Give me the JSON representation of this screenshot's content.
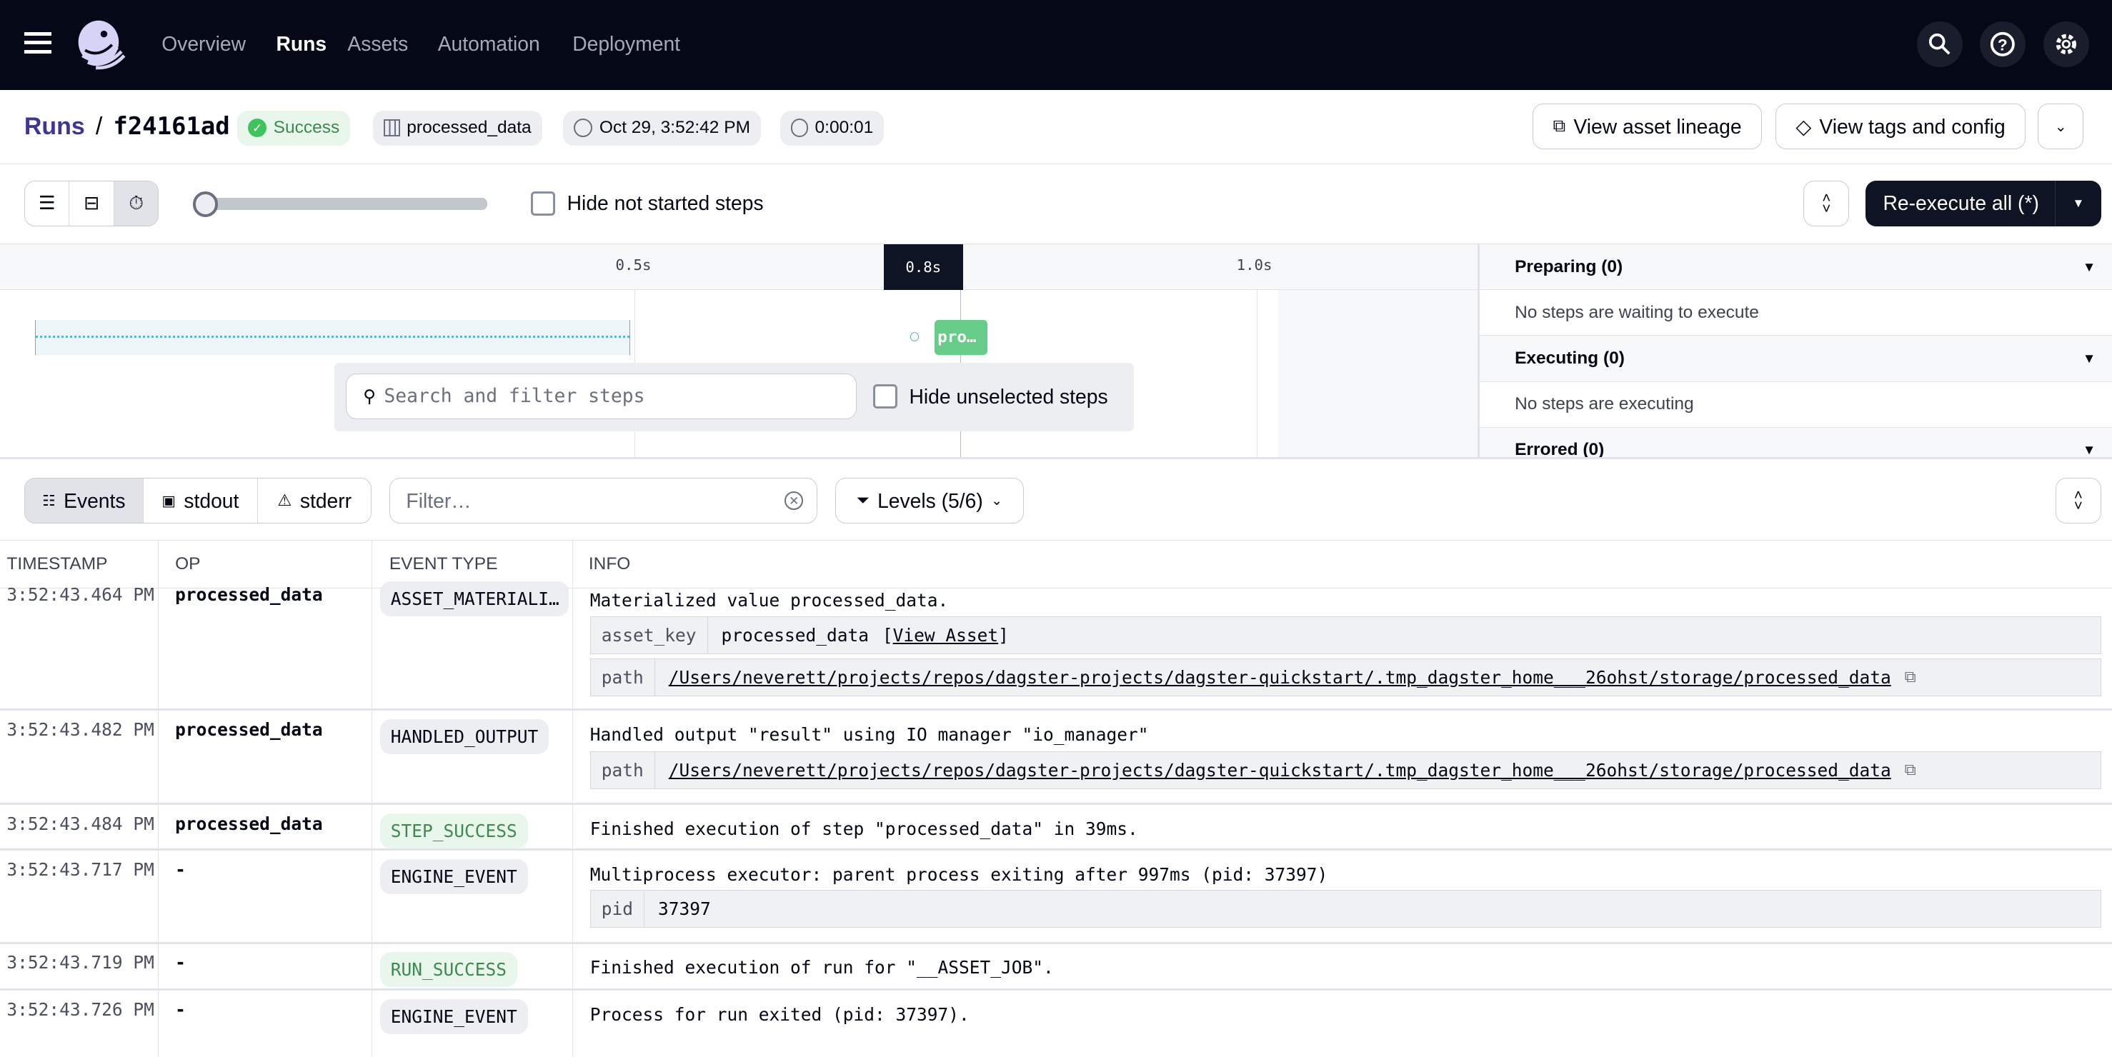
{
  "nav": {
    "items": [
      {
        "label": "Overview"
      },
      {
        "label": "Runs",
        "active": true
      },
      {
        "label": "Assets"
      },
      {
        "label": "Automation"
      },
      {
        "label": "Deployment"
      }
    ],
    "icons": [
      "menu-icon",
      "search-icon",
      "help-icon",
      "settings-icon"
    ]
  },
  "run": {
    "breadcrumb_root": "Runs",
    "sep": "/",
    "run_id": "f24161ad",
    "status": "Success",
    "asset": "processed_data",
    "start_time": "Oct 29, 3:52:42 PM",
    "duration": "0:00:01",
    "view_lineage": "View asset lineage",
    "view_tags": "View tags and config"
  },
  "toolbar": {
    "hide_not_started": "Hide not started steps",
    "reexecute": "Re-execute all (*)",
    "zoom_level": 0
  },
  "gantt": {
    "ticks": [
      "0.5s",
      "0.8s",
      "1.0s"
    ],
    "step_label": "pro…",
    "search_placeholder": "Search and filter steps",
    "hide_unselected": "Hide unselected steps"
  },
  "panel": {
    "sections": [
      {
        "title": "Preparing (0)",
        "body": "No steps are waiting to execute"
      },
      {
        "title": "Executing (0)",
        "body": "No steps are executing"
      },
      {
        "title": "Errored (0)"
      }
    ]
  },
  "logs": {
    "tabs": [
      "Events",
      "stdout",
      "stderr"
    ],
    "filter_placeholder": "Filter…",
    "levels": "Levels (5/6)",
    "columns": [
      "TIMESTAMP",
      "OP",
      "EVENT TYPE",
      "INFO"
    ],
    "rows": [
      {
        "ts": "3:52:43.464 PM",
        "op": "processed_data",
        "type": "ASSET_MATERIALI…",
        "info": "Materialized value processed_data.",
        "kv": [
          {
            "k": "asset_key",
            "v": "processed_data",
            "link": "View Asset"
          },
          {
            "k": "path",
            "v": "/Users/neverett/projects/repos/dagster-projects/dagster-quickstart/.tmp_dagster_home___26ohst/storage/processed_data"
          }
        ]
      },
      {
        "ts": "3:52:43.482 PM",
        "op": "processed_data",
        "type": "HANDLED_OUTPUT",
        "info": "Handled output \"result\" using IO manager \"io_manager\"",
        "kv": [
          {
            "k": "path",
            "v": "/Users/neverett/projects/repos/dagster-projects/dagster-quickstart/.tmp_dagster_home___26ohst/storage/processed_data"
          }
        ]
      },
      {
        "ts": "3:52:43.484 PM",
        "op": "processed_data",
        "type": "STEP_SUCCESS",
        "info": "Finished execution of step \"processed_data\" in 39ms."
      },
      {
        "ts": "3:52:43.717 PM",
        "op": "-",
        "type": "ENGINE_EVENT",
        "info": "Multiprocess executor: parent process exiting after 997ms (pid: 37397)",
        "kv": [
          {
            "k": "pid",
            "v": "37397"
          }
        ]
      },
      {
        "ts": "3:52:43.719 PM",
        "op": "-",
        "type": "RUN_SUCCESS",
        "info": "Finished execution of run for \"__ASSET_JOB\"."
      },
      {
        "ts": "3:52:43.726 PM",
        "op": "-",
        "type": "ENGINE_EVENT",
        "info": "Process for run exited (pid: 37397)."
      }
    ]
  },
  "colors": {
    "nav_bg": "#050816",
    "success": "#3c8a4e",
    "step_bar": "#66cc88",
    "accent": "#3d3696"
  }
}
